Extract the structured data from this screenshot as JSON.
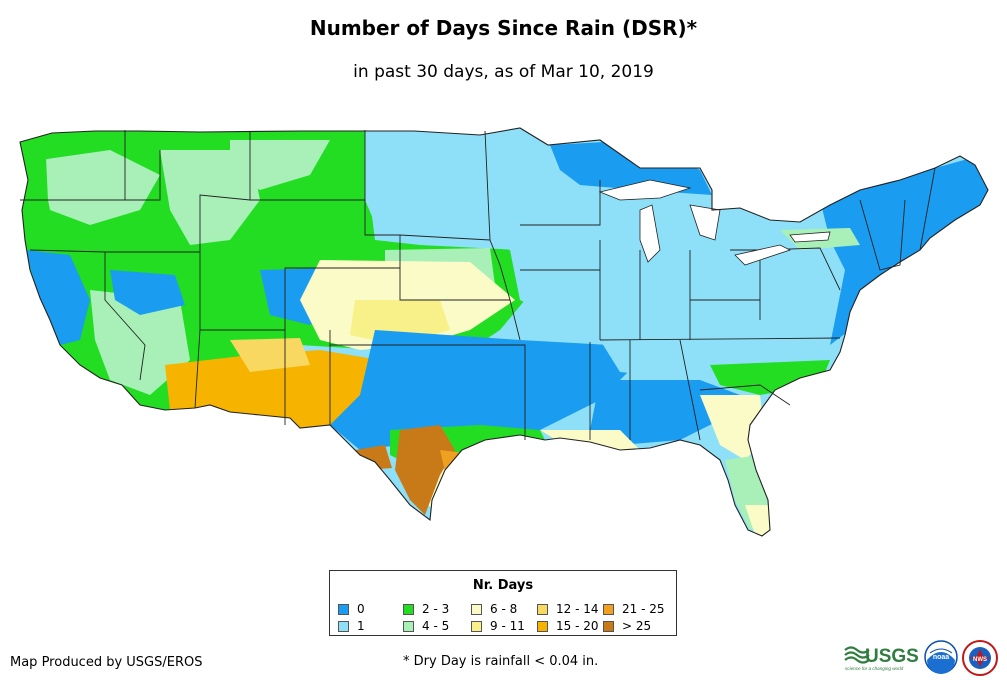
{
  "header": {
    "title": "Number of Days Since Rain (DSR)*",
    "subtitle": "in past 30 days, as of Mar 10, 2019"
  },
  "legend": {
    "title": "Nr. Days",
    "items": [
      {
        "label": "0",
        "color": "#1a9cf0"
      },
      {
        "label": "1",
        "color": "#8ee0f8"
      },
      {
        "label": "2 - 3",
        "color": "#22dd22"
      },
      {
        "label": "4 - 5",
        "color": "#a8f0b8"
      },
      {
        "label": "6 - 8",
        "color": "#fbfbc8"
      },
      {
        "label": "9 - 11",
        "color": "#f8f088"
      },
      {
        "label": "12 - 14",
        "color": "#f8d860"
      },
      {
        "label": "15 - 20",
        "color": "#f6b400"
      },
      {
        "label": "21 - 25",
        "color": "#f0a020"
      },
      {
        "label": "> 25",
        "color": "#c87a18"
      }
    ]
  },
  "footer": {
    "credit": "Map Produced by USGS/EROS",
    "footnote": "* Dry Day is rainfall < 0.04 in.",
    "logo_usgs_text": "USGS",
    "logo_usgs_tagline": "science for a changing world",
    "logo_noaa_text": "noaa",
    "logo_nws_text": "NWS"
  },
  "map": {
    "border_color": "#222222",
    "class_colors": {
      "c0": "#1a9cf0",
      "c1": "#8ee0f8",
      "c2": "#22dd22",
      "c4": "#a8f0b8",
      "c6": "#fbfbc8",
      "c9": "#f8f088",
      "c12": "#f8d860",
      "c15": "#f6b400",
      "c21": "#f0a020",
      "c25": "#c87a18"
    }
  }
}
